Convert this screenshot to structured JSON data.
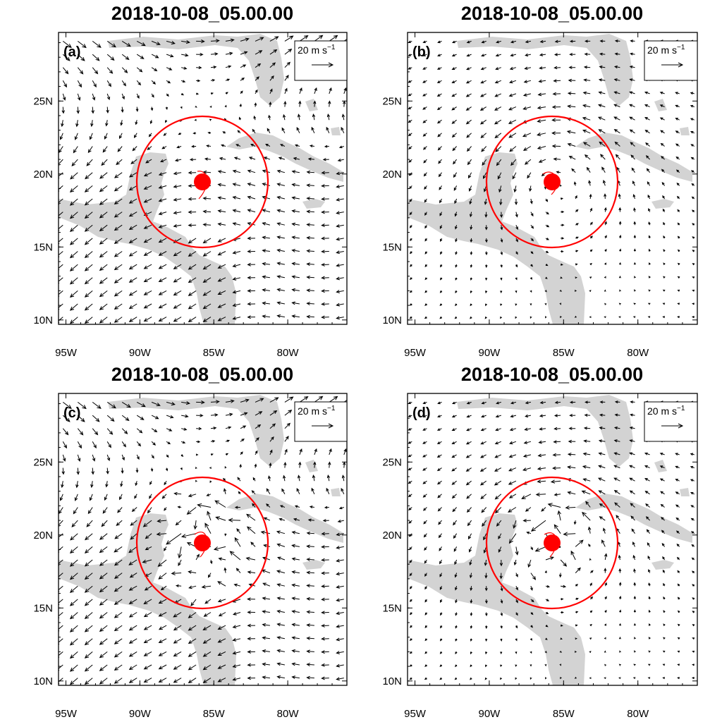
{
  "figure": {
    "panels": [
      {
        "id": "a",
        "title": "2018-10-08_05.00.00",
        "label": "(a)",
        "flow": "synoptic"
      },
      {
        "id": "b",
        "title": "2018-10-08_05.00.00",
        "label": "(b)",
        "flow": "vortex"
      },
      {
        "id": "c",
        "title": "2018-10-08_05.00.00",
        "label": "(c)",
        "flow": "synoptic-perturbed"
      },
      {
        "id": "d",
        "title": "2018-10-08_05.00.00",
        "label": "(d)",
        "flow": "vortex-perturbed"
      }
    ],
    "reference_vector": {
      "label": "20 m s",
      "superscript": "−1",
      "magnitude_ms": 20
    },
    "x_ticks": [
      "95W",
      "90W",
      "85W",
      "80W"
    ],
    "y_ticks": [
      "25N",
      "20N",
      "15N",
      "10N"
    ],
    "lon_range": [
      -95.5,
      -76
    ],
    "lat_range": [
      9.7,
      29.7
    ],
    "storm_center": {
      "lon": -85.5,
      "lat": 19.8
    },
    "analysis_radius_deg": 4.5,
    "colors": {
      "land": "#d3d3d3",
      "storm": "#ff0000",
      "vectors": "#000000"
    }
  }
}
